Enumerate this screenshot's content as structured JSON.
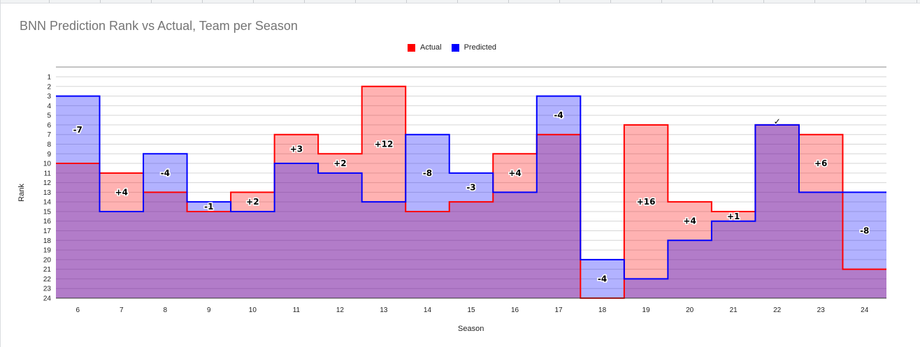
{
  "chart_data": {
    "type": "area",
    "title": "BNN Prediction Rank vs Actual, Team per Season",
    "xlabel": "Season",
    "ylabel": "Rank",
    "x": [
      6,
      7,
      8,
      9,
      10,
      11,
      12,
      13,
      14,
      15,
      16,
      17,
      18,
      19,
      20,
      21,
      22,
      23,
      24
    ],
    "series": [
      {
        "name": "Actual",
        "color": "#ff0000",
        "values": [
          10,
          11,
          13,
          15,
          13,
          7,
          9,
          2,
          15,
          14,
          9,
          7,
          24,
          6,
          14,
          15,
          6,
          7,
          21
        ]
      },
      {
        "name": "Predicted",
        "color": "#0000ff",
        "values": [
          3,
          15,
          9,
          14,
          15,
          10,
          11,
          14,
          7,
          11,
          13,
          3,
          20,
          22,
          18,
          16,
          6,
          13,
          13
        ]
      }
    ],
    "annotations": [
      "-7",
      "+4",
      "-4",
      "-1",
      "+2",
      "+3",
      "+2",
      "+12",
      "-8",
      "-3",
      "+4",
      "-4",
      "-4",
      "+16",
      "+4",
      "+1",
      "✓",
      "+6",
      "-8"
    ],
    "ylim": [
      1,
      24
    ],
    "y_reversed": true,
    "y_ticks": [
      1,
      2,
      3,
      4,
      5,
      6,
      7,
      8,
      9,
      10,
      11,
      12,
      13,
      14,
      15,
      16,
      17,
      18,
      19,
      20,
      21,
      22,
      23,
      24
    ],
    "grid": true,
    "legend_position": "top"
  }
}
